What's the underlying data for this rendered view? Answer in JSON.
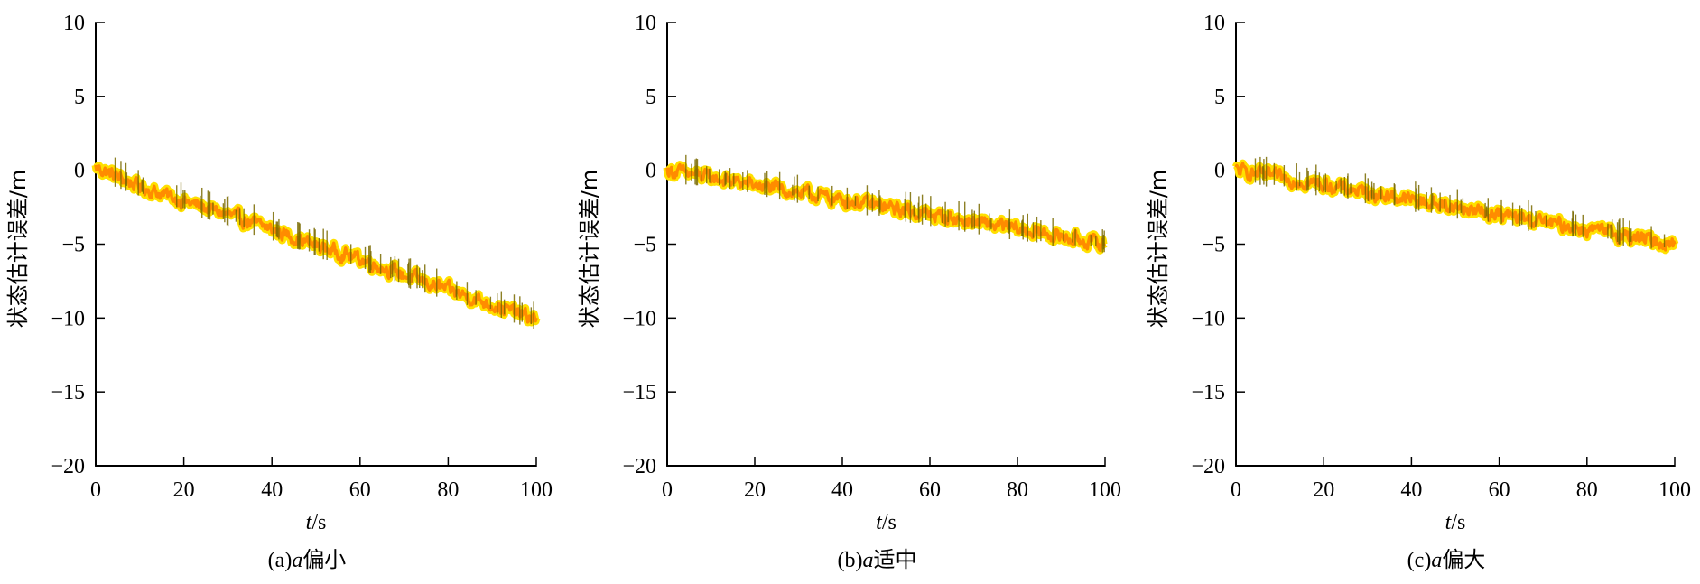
{
  "chart_data": [
    {
      "type": "line",
      "title": "",
      "caption": {
        "prefix": "(a)",
        "var": "a",
        "text": "偏小"
      },
      "xlabel": {
        "var": "t",
        "unit": "/s"
      },
      "ylabel": "状态估计误差/m",
      "xlim": [
        0,
        100
      ],
      "ylim": [
        -20,
        10
      ],
      "xticks": [
        "0",
        "20",
        "40",
        "60",
        "80",
        "100"
      ],
      "yticks": [
        "10",
        "5",
        "0",
        "−5",
        "−10",
        "−15",
        "−20"
      ],
      "grid": false,
      "series": [
        {
          "color_outer": "#ffe000",
          "color_inner": "#ff8c00",
          "color_spike": "#7a6a00",
          "x": [
            0,
            10,
            20,
            30,
            40,
            50,
            60,
            70,
            80,
            90,
            100
          ],
          "y": [
            0.2,
            -1.1,
            -2.1,
            -3.0,
            -4.0,
            -5.1,
            -6.0,
            -7.1,
            -8.1,
            -9.1,
            -10.1
          ]
        }
      ]
    },
    {
      "type": "line",
      "title": "",
      "caption": {
        "prefix": "(b)",
        "var": "a",
        "text": "适中"
      },
      "xlabel": {
        "var": "t",
        "unit": "/s"
      },
      "ylabel": "状态估计误差/m",
      "xlim": [
        0,
        100
      ],
      "ylim": [
        -20,
        10
      ],
      "xticks": [
        "0",
        "20",
        "40",
        "60",
        "80",
        "100"
      ],
      "yticks": [
        "10",
        "5",
        "0",
        "−5",
        "−10",
        "−15",
        "−20"
      ],
      "grid": false,
      "series": [
        {
          "color_outer": "#ffe000",
          "color_inner": "#ff8c00",
          "color_spike": "#7a6a00",
          "x": [
            0,
            10,
            20,
            30,
            40,
            50,
            60,
            70,
            80,
            90,
            100
          ],
          "y": [
            0.0,
            -0.5,
            -1.0,
            -1.5,
            -2.0,
            -2.5,
            -3.0,
            -3.5,
            -4.0,
            -4.5,
            -5.0
          ]
        }
      ]
    },
    {
      "type": "line",
      "title": "",
      "caption": {
        "prefix": "(c)",
        "var": "a",
        "text": "偏大"
      },
      "xlabel": {
        "var": "t",
        "unit": "/s"
      },
      "ylabel": "状态估计误差/m",
      "xlim": [
        0,
        100
      ],
      "ylim": [
        -20,
        10
      ],
      "xticks": [
        "0",
        "20",
        "40",
        "60",
        "80",
        "100"
      ],
      "yticks": [
        "10",
        "5",
        "0",
        "−5",
        "−10",
        "−15",
        "−20"
      ],
      "grid": false,
      "series": [
        {
          "color_outer": "#ffe000",
          "color_inner": "#ff8c00",
          "color_spike": "#7a6a00",
          "x": [
            0,
            10,
            20,
            30,
            40,
            50,
            60,
            70,
            80,
            90,
            100
          ],
          "y": [
            0.0,
            -0.5,
            -1.0,
            -1.5,
            -2.0,
            -2.5,
            -3.0,
            -3.5,
            -4.0,
            -4.5,
            -5.0
          ]
        }
      ]
    }
  ]
}
